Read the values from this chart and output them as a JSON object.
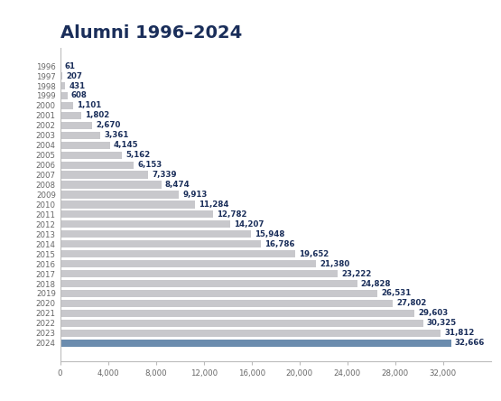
{
  "title": "Alumni 1996–2024",
  "years": [
    "1996",
    "1997",
    "1998",
    "1999",
    "2000",
    "2001",
    "2002",
    "2003",
    "2004",
    "2005",
    "2006",
    "2007",
    "2008",
    "2009",
    "2010",
    "2011",
    "2012",
    "2013",
    "2014",
    "2015",
    "2016",
    "2017",
    "2018",
    "2019",
    "2020",
    "2021",
    "2022",
    "2023",
    "2024"
  ],
  "values": [
    61,
    207,
    431,
    608,
    1101,
    1802,
    2670,
    3361,
    4145,
    5162,
    6153,
    7339,
    8474,
    9913,
    11284,
    12782,
    14207,
    15948,
    16786,
    19652,
    21380,
    23222,
    24828,
    26531,
    27802,
    29603,
    30325,
    31812,
    32666
  ],
  "bar_color_default": "#c8c8cc",
  "bar_color_highlight": "#6b8cae",
  "background_color": "#ffffff",
  "title_color": "#1a2e5a",
  "label_color": "#1a2e5a",
  "tick_color": "#666666",
  "title_fontsize": 14,
  "label_fontsize": 6.2,
  "year_fontsize": 6.2,
  "xlim": [
    0,
    36000
  ],
  "xticks": [
    0,
    4000,
    8000,
    12000,
    16000,
    20000,
    24000,
    28000,
    32000
  ],
  "xtick_labels": [
    "0",
    "4,000",
    "8,000",
    "12,000",
    "16,000",
    "20,000",
    "24,000",
    "28,000",
    "32,000"
  ]
}
